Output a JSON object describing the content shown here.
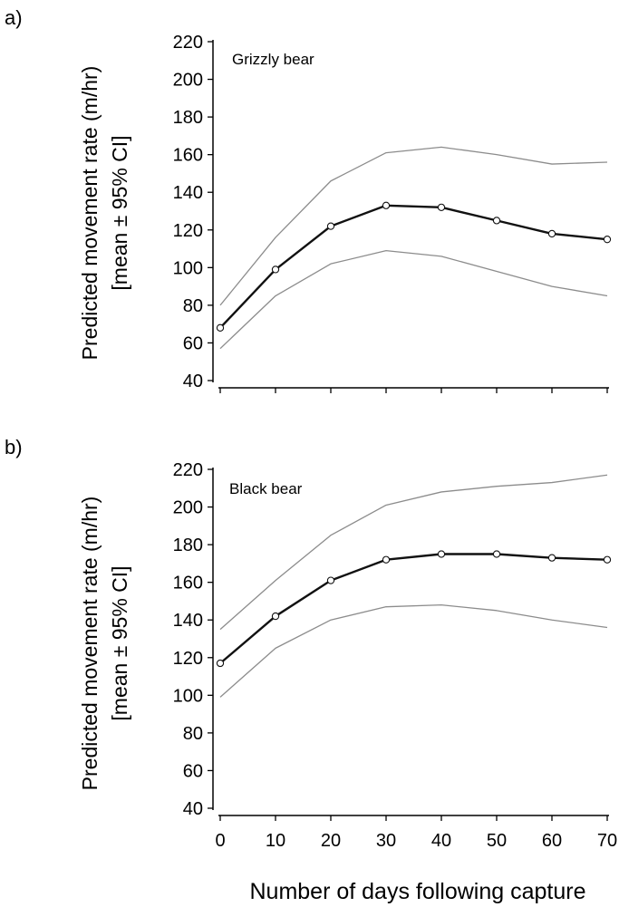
{
  "chart_data": [
    {
      "type": "line",
      "panel_label": "a)",
      "title": "Grizzly bear",
      "ylabel_line1": "Predicted movement rate (m/hr)",
      "ylabel_line2": "[mean ± 95% CI]",
      "xlabel": "",
      "x": [
        0,
        10,
        20,
        30,
        40,
        50,
        60,
        70
      ],
      "ylim": [
        40,
        220
      ],
      "xlim": [
        0,
        70
      ],
      "yticks": [
        "40",
        "60",
        "80",
        "100",
        "120",
        "140",
        "160",
        "180",
        "200",
        "220"
      ],
      "xticks": [
        "0",
        "10",
        "20",
        "30",
        "40",
        "50",
        "60",
        "70"
      ],
      "show_xtick_labels": false,
      "series": [
        {
          "role": "mean",
          "values": [
            68,
            99,
            122,
            133,
            132,
            125,
            118,
            115
          ]
        },
        {
          "role": "upper",
          "values": [
            80,
            116,
            146,
            161,
            164,
            160,
            155,
            156
          ]
        },
        {
          "role": "lower",
          "values": [
            57,
            85,
            102,
            109,
            106,
            98,
            90,
            85
          ]
        }
      ],
      "colors": {
        "mean": "#111111",
        "ci": "#8c8c8c"
      },
      "grid": false
    },
    {
      "type": "line",
      "panel_label": "b)",
      "title": "Black bear",
      "ylabel_line1": "Predicted movement rate (m/hr)",
      "ylabel_line2": "[mean ± 95% CI]",
      "xlabel": "Number of days following capture",
      "x": [
        0,
        10,
        20,
        30,
        40,
        50,
        60,
        70
      ],
      "ylim": [
        40,
        220
      ],
      "xlim": [
        0,
        70
      ],
      "yticks": [
        "40",
        "60",
        "80",
        "100",
        "120",
        "140",
        "160",
        "180",
        "200",
        "220"
      ],
      "xticks": [
        "0",
        "10",
        "20",
        "30",
        "40",
        "50",
        "60",
        "70"
      ],
      "show_xtick_labels": true,
      "series": [
        {
          "role": "mean",
          "values": [
            117,
            142,
            161,
            172,
            175,
            175,
            173,
            172
          ]
        },
        {
          "role": "upper",
          "values": [
            135,
            161,
            185,
            201,
            208,
            211,
            213,
            217
          ]
        },
        {
          "role": "lower",
          "values": [
            99,
            125,
            140,
            147,
            148,
            145,
            140,
            136
          ]
        }
      ],
      "colors": {
        "mean": "#111111",
        "ci": "#8c8c8c"
      },
      "grid": false
    }
  ]
}
